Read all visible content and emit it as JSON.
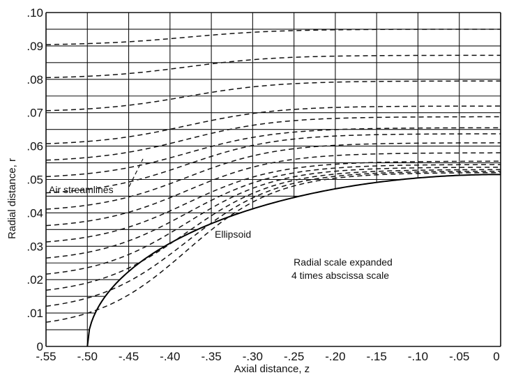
{
  "chart_data": {
    "type": "line",
    "xlabel": "Axial distance, z",
    "ylabel": "Radial distance, r",
    "xlim": [
      -0.55,
      0
    ],
    "ylim": [
      0,
      0.1
    ],
    "x_ticks": [
      "-.55",
      "-.50",
      "-.45",
      "-.40",
      "-.35",
      "-.30",
      "-.25",
      "-.20",
      "-.15",
      "-.10",
      "-.05",
      "0"
    ],
    "x_tick_values": [
      -0.55,
      -0.5,
      -0.45,
      -0.4,
      -0.35,
      -0.3,
      -0.25,
      -0.2,
      -0.15,
      -0.1,
      -0.05,
      0
    ],
    "y_ticks": [
      "0",
      ".01",
      ".02",
      ".03",
      ".04",
      ".05",
      ".06",
      ".07",
      ".08",
      ".09",
      ".10"
    ],
    "y_tick_values": [
      0,
      0.01,
      0.02,
      0.03,
      0.04,
      0.05,
      0.06,
      0.07,
      0.08,
      0.09,
      0.1
    ],
    "grid": true,
    "minor_grid_y": 0.005,
    "ellipsoid": {
      "name": "Ellipsoid",
      "center_z": 0,
      "semi_axis_z": 0.5,
      "semi_axis_r": 0.0515
    },
    "streamlines": {
      "name": "Air streamlines",
      "start_z": -0.55,
      "end_z": 0,
      "start_r": [
        0.0052,
        0.0102,
        0.0152,
        0.0202,
        0.0252,
        0.0302,
        0.0352,
        0.0402,
        0.0452,
        0.0502,
        0.0552,
        0.0602,
        0.0702,
        0.0802,
        0.0902
      ],
      "end_r": [
        0.0521,
        0.0525,
        0.053,
        0.0537,
        0.0545,
        0.0555,
        0.058,
        0.061,
        0.0637,
        0.0655,
        0.0688,
        0.072,
        0.0795,
        0.0872,
        0.095
      ]
    },
    "annotations": {
      "air_streamlines": "Air streamlines",
      "ellipsoid": "Ellipsoid",
      "scale_note_line1": "Radial scale expanded",
      "scale_note_line2": "4 times abscissa scale"
    }
  }
}
